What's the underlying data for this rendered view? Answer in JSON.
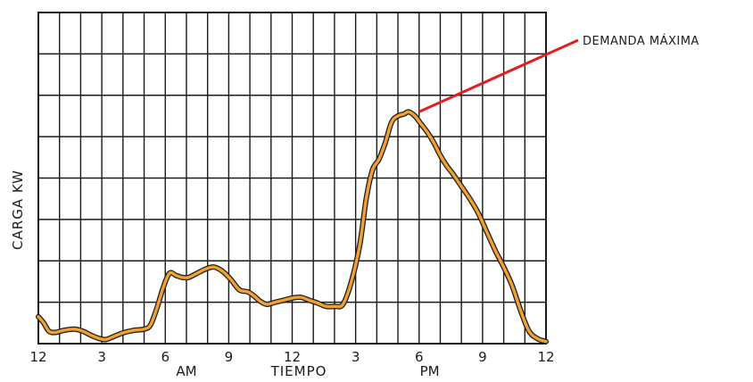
{
  "chart_data": {
    "type": "line",
    "xlabel": "TIEMPO",
    "ylabel": "CARGA KW",
    "x_tick_labels": [
      "12",
      "3",
      "6",
      "9",
      "12",
      "3",
      "6",
      "9",
      "12"
    ],
    "x_period_labels": [
      "AM",
      "PM"
    ],
    "xlim": [
      0,
      24
    ],
    "ylim": [
      0,
      8
    ],
    "grid": true,
    "series": [
      {
        "color_fill": "#f0a030",
        "color_edge": "#1a1a1a",
        "x": [
          0,
          0.25,
          0.5,
          0.8,
          1.2,
          1.7,
          2.1,
          2.5,
          2.9,
          3.2,
          3.6,
          4.0,
          4.5,
          5.0,
          5.3,
          5.6,
          5.9,
          6.2,
          6.5,
          6.8,
          7.1,
          7.5,
          7.9,
          8.3,
          8.7,
          9.1,
          9.5,
          9.9,
          10.2,
          10.5,
          10.8,
          11.2,
          11.6,
          12.0,
          12.4,
          12.8,
          13.2,
          13.6,
          14.0,
          14.4,
          14.8,
          15.2,
          15.5,
          15.8,
          16.1,
          16.4,
          16.7,
          17.0,
          17.3,
          17.5,
          17.8,
          18.1,
          18.4,
          18.7,
          19.0,
          19.3,
          19.6,
          20.0,
          20.4,
          20.8,
          21.2,
          21.6,
          22.0,
          22.4,
          22.8,
          23.2,
          23.6,
          24.0
        ],
        "y": [
          0.65,
          0.5,
          0.3,
          0.27,
          0.32,
          0.35,
          0.3,
          0.2,
          0.12,
          0.1,
          0.18,
          0.26,
          0.32,
          0.35,
          0.45,
          0.85,
          1.35,
          1.7,
          1.65,
          1.6,
          1.6,
          1.7,
          1.8,
          1.85,
          1.75,
          1.55,
          1.3,
          1.25,
          1.15,
          1.02,
          0.95,
          1.0,
          1.05,
          1.1,
          1.12,
          1.05,
          0.98,
          0.9,
          0.9,
          0.95,
          1.5,
          2.4,
          3.5,
          4.2,
          4.45,
          4.85,
          5.35,
          5.5,
          5.55,
          5.6,
          5.5,
          5.3,
          5.1,
          4.85,
          4.55,
          4.3,
          4.1,
          3.8,
          3.5,
          3.15,
          2.7,
          2.25,
          1.85,
          1.4,
          0.8,
          0.3,
          0.12,
          0.05
        ]
      }
    ],
    "annotations": [
      {
        "text": "DEMANDA MÁXIMA",
        "x": 18.0,
        "y": 5.6,
        "line_color": "#e02020"
      }
    ]
  }
}
